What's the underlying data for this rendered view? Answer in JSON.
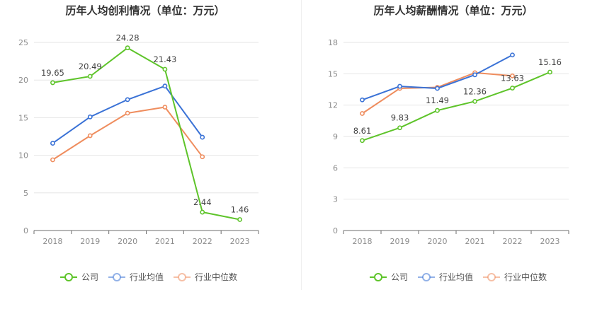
{
  "legend": [
    "公司",
    "行业均值",
    "行业中位数"
  ],
  "colors": {
    "company": "#5ec42a",
    "industry_avg": "#3a72d6",
    "industry_median": "#ef8d5e",
    "divider": "#eeeeee"
  },
  "chart_data": [
    {
      "type": "line",
      "title": "历年人均创利情况（单位：万元）",
      "categories": [
        "2018",
        "2019",
        "2020",
        "2021",
        "2022",
        "2023"
      ],
      "ylim": [
        0,
        25
      ],
      "yticks": [
        0,
        5,
        10,
        15,
        20,
        25
      ],
      "grid": true,
      "legend_position": "bottom",
      "series": [
        {
          "name": "公司",
          "color_key": "company",
          "labeled": true,
          "values": [
            19.65,
            20.49,
            24.28,
            21.43,
            2.44,
            1.46
          ],
          "labels": [
            "19.65",
            "20.49",
            "24.28",
            "21.43",
            "2.44",
            "1.46"
          ]
        },
        {
          "name": "行业均值",
          "color_key": "industry_avg",
          "labeled": false,
          "values": [
            11.6,
            15.1,
            17.4,
            19.2,
            12.4,
            null
          ]
        },
        {
          "name": "行业中位数",
          "color_key": "industry_median",
          "labeled": false,
          "values": [
            9.4,
            12.6,
            15.6,
            16.4,
            9.8,
            null
          ]
        }
      ]
    },
    {
      "type": "line",
      "title": "历年人均薪酬情况（单位：万元）",
      "categories": [
        "2018",
        "2019",
        "2020",
        "2021",
        "2022",
        "2023"
      ],
      "ylim": [
        0,
        18
      ],
      "yticks": [
        0,
        3,
        6,
        9,
        12,
        15,
        18
      ],
      "grid": true,
      "legend_position": "bottom",
      "series": [
        {
          "name": "公司",
          "color_key": "company",
          "labeled": true,
          "values": [
            8.61,
            9.83,
            11.49,
            12.36,
            13.63,
            15.16
          ],
          "labels": [
            "8.61",
            "9.83",
            "11.49",
            "12.36",
            "13.63",
            "15.16"
          ]
        },
        {
          "name": "行业均值",
          "color_key": "industry_avg",
          "labeled": false,
          "values": [
            12.5,
            13.8,
            13.6,
            14.9,
            16.8,
            null
          ]
        },
        {
          "name": "行业中位数",
          "color_key": "industry_median",
          "labeled": false,
          "values": [
            11.2,
            13.6,
            13.7,
            15.1,
            14.8,
            null
          ]
        }
      ]
    }
  ]
}
